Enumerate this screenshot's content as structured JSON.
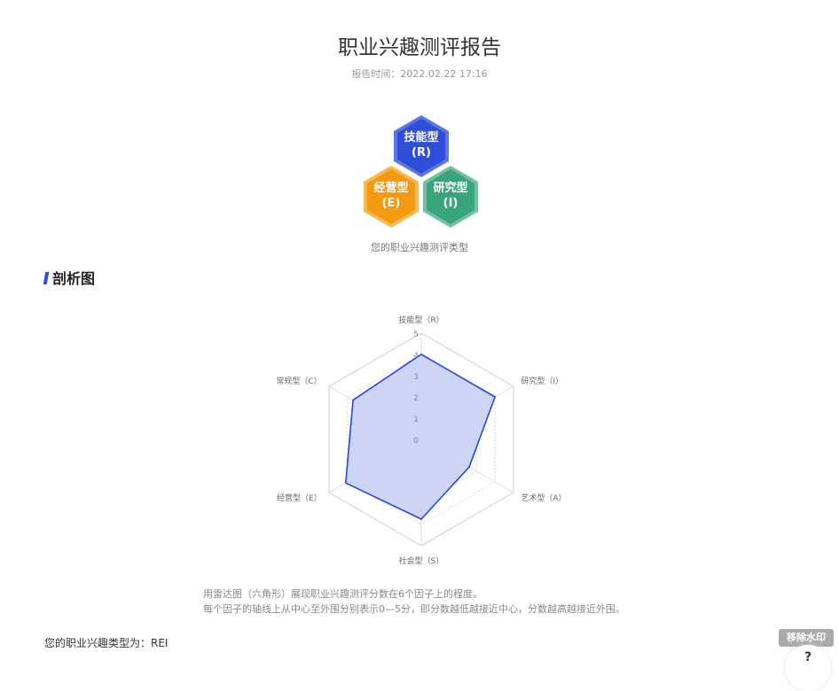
{
  "header": {
    "title": "职业兴趣测评报告",
    "report_time": "报告时间：2022.02.22 17:16"
  },
  "types": [
    {
      "name": "技能型",
      "code": "(R)",
      "color": "#2f4fd8"
    },
    {
      "name": "经营型",
      "code": "(E)",
      "color": "#f39a12"
    },
    {
      "name": "研究型",
      "code": "(I)",
      "color": "#3aa57d"
    }
  ],
  "types_caption": "您的职业兴趣测评类型",
  "section_title": "剖析图",
  "chart_data": {
    "type": "radar",
    "axes": [
      "技能型（R）",
      "研究型（I）",
      "艺术型（A）",
      "社会型（S）",
      "经营型（E）",
      "常规型（C）"
    ],
    "values": [
      4.0,
      4.0,
      2.6,
      3.75,
      4.1,
      3.7
    ],
    "range": [
      0,
      5
    ],
    "ticks": [
      "0",
      "1",
      "2",
      "3",
      "4",
      "5"
    ],
    "color": "#2447e0",
    "fill": "#c5cdf3"
  },
  "description": [
    "用雷达图（六角形）展现职业兴趣测评分数在6个因子上的程度。",
    "每个因子的轴线上从中心至外围分别表示0—5分，即分数越低越接近中心，分数越高越接近外围。"
  ],
  "result": "您的职业兴趣类型为：REI",
  "remove_watermark": "移除水印",
  "help_label": "?"
}
